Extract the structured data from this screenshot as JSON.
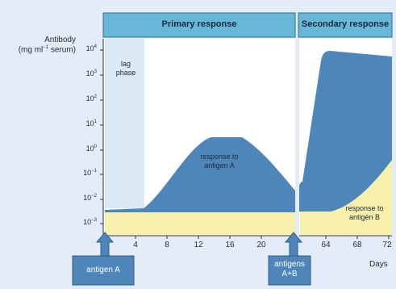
{
  "header": {
    "primary": "Primary response",
    "secondary": "Secondary response"
  },
  "y_axis": {
    "title_line1": "Antibody",
    "title_line2_a": "(mg ml",
    "title_line2_sup": "−1",
    "title_line2_b": " serum)",
    "ticks": [
      {
        "base": "10",
        "exp": "4"
      },
      {
        "base": "10",
        "exp": "3"
      },
      {
        "base": "10",
        "exp": "2"
      },
      {
        "base": "10",
        "exp": "1"
      },
      {
        "base": "10",
        "exp": "0"
      },
      {
        "base": "10",
        "exp": "−1"
      },
      {
        "base": "10",
        "exp": "−2"
      },
      {
        "base": "10",
        "exp": "−3"
      }
    ]
  },
  "x_axis": {
    "ticks_primary": [
      "4",
      "8",
      "12",
      "16",
      "20"
    ],
    "ticks_secondary": [
      "64",
      "68",
      "72"
    ],
    "unit": "Days"
  },
  "annotations": {
    "lag_line1": "lag",
    "lag_line2": "phase",
    "resp_a_line1": "response to",
    "resp_a_line2": "antigen A",
    "resp_b_line1": "response to",
    "resp_b_line2": "antigen B"
  },
  "boxes": {
    "antigen_a": "antigen A",
    "antigens_line1": "antigens",
    "antigens_line2": "A+B"
  },
  "colors": {
    "header_fill": "#67b7d8",
    "response_blue": "#4f86b9",
    "response_yellow": "#f6f0ac",
    "lag_fill": "#dbe9f5",
    "box_blue": "#4f86b9"
  }
}
